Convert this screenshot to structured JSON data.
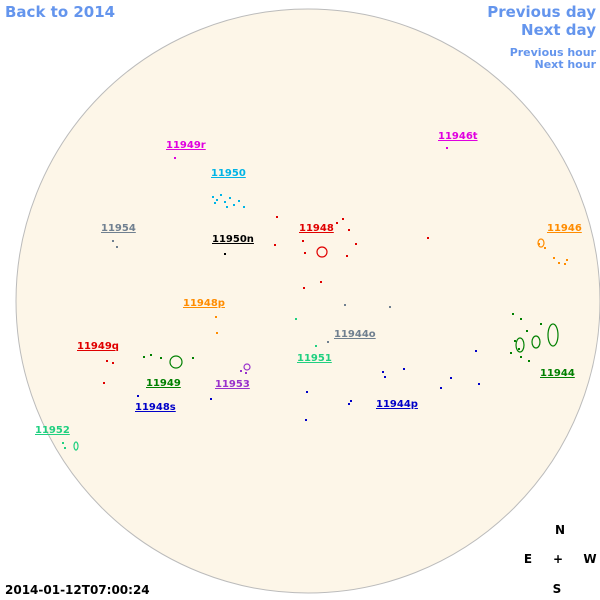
{
  "nav": {
    "back": "Back to 2014",
    "previous_day": "Previous day",
    "next_day": "Next day",
    "previous_hour": "Previous hour",
    "next_hour": "Next hour"
  },
  "regions": [
    {
      "label": "11949r",
      "color": "#e000e0"
    },
    {
      "label": "11946t",
      "color": "#e000e0"
    },
    {
      "label": "11950",
      "color": "#00b4e6"
    },
    {
      "label": "11954",
      "color": "#708090"
    },
    {
      "label": "11948",
      "color": "#e00000"
    },
    {
      "label": "11946",
      "color": "#ff8c00"
    },
    {
      "label": "11950n",
      "color": "#000000"
    },
    {
      "label": "11948p",
      "color": "#ff8c00"
    },
    {
      "label": "11944o",
      "color": "#708090"
    },
    {
      "label": "11949q",
      "color": "#e00000"
    },
    {
      "label": "11951",
      "color": "#20d080"
    },
    {
      "label": "11944",
      "color": "#008000"
    },
    {
      "label": "11949",
      "color": "#008000"
    },
    {
      "label": "11953",
      "color": "#9932cc"
    },
    {
      "label": "11948s",
      "color": "#0000c8"
    },
    {
      "label": "11944p",
      "color": "#0000c8"
    },
    {
      "label": "11952",
      "color": "#20d080"
    }
  ],
  "compass": {
    "north": "N",
    "east": "E",
    "center": "+",
    "west": "W",
    "south": "S"
  },
  "timestamp": "2014-01-12T07:00:24"
}
